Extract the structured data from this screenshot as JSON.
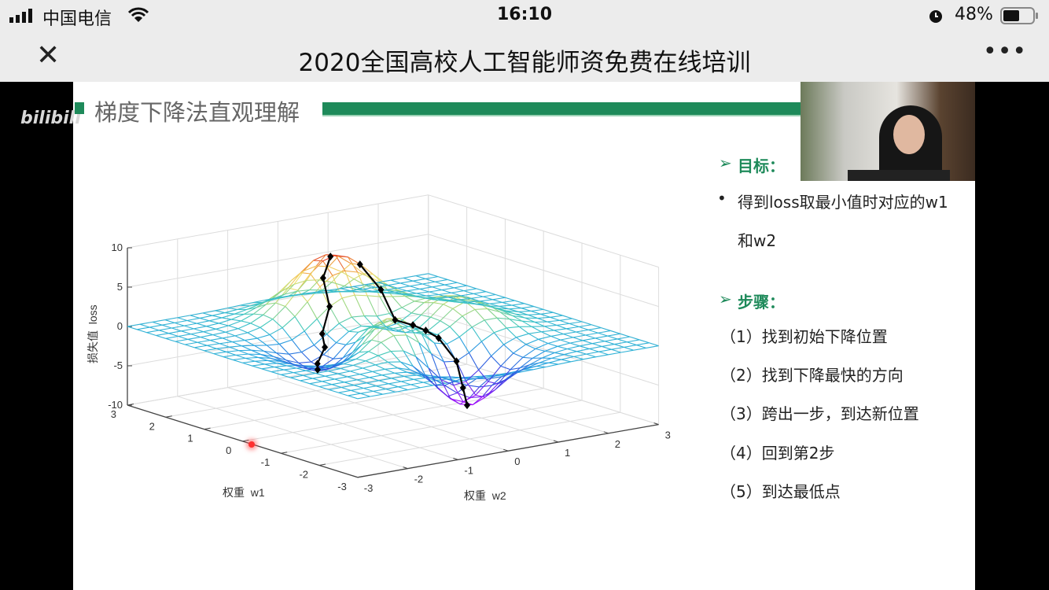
{
  "status_bar": {
    "carrier": "中国电信",
    "time": "16:10",
    "battery": "48%",
    "icons": [
      "signal-icon",
      "wifi-icon",
      "alarm-icon",
      "battery-icon"
    ]
  },
  "nav": {
    "title": "2020全国高校人工智能师资免费在线培训",
    "close_icon": "close-icon",
    "more_icon": "more-icon"
  },
  "video": {
    "watermark": "bilibili",
    "slide": {
      "title": "梯度下降法直观理解",
      "accent_color": "#1e8a5a",
      "goal_heading": "目标：",
      "goal_bullet_line1": "得到loss取最小值时对应的w1",
      "goal_bullet_line2": "和w2",
      "steps_heading": "步骤：",
      "steps": [
        "（1）找到初始下降位置",
        "（2）找到下降最快的方向",
        "（3）跨出一步，到达新位置",
        "（4）回到第2步",
        "（5）到达最低点"
      ]
    }
  },
  "chart_data": {
    "type": "surface",
    "xlabel": "权重  w1",
    "ylabel": "权重  w2",
    "zlabel": "损失值  loss",
    "xlim": [
      -3,
      3
    ],
    "ylim": [
      -3,
      3
    ],
    "zlim": [
      -10,
      10
    ],
    "x_ticks": [
      "-3",
      "-2",
      "-1",
      "0",
      "1",
      "2",
      "3"
    ],
    "y_ticks": [
      "-3",
      "-2",
      "-1",
      "0",
      "1",
      "2",
      "3"
    ],
    "z_ticks": [
      "-10",
      "-5",
      "0",
      "5",
      "10"
    ],
    "grid": true,
    "colormap": [
      "#b000ff",
      "#3050e0",
      "#2aa8e0",
      "#40c8c0",
      "#a0d880",
      "#f0e070",
      "#f0a040",
      "#e02020"
    ],
    "descent_paths": [
      [
        [
          1.45,
          0.45
        ],
        [
          1.1,
          0.6
        ],
        [
          0.6,
          0.5
        ],
        [
          0.2,
          0.55
        ],
        [
          -0.2,
          0.5
        ],
        [
          -0.6,
          0.45
        ],
        [
          -1.0,
          0.5
        ],
        [
          -1.3,
          0.4
        ],
        [
          -1.63,
          0.23
        ]
      ],
      [
        [
          1.5,
          -0.1
        ],
        [
          1.3,
          -0.4
        ],
        [
          1.0,
          -0.5
        ],
        [
          0.8,
          -0.8
        ],
        [
          0.6,
          -0.9
        ],
        [
          0.4,
          -1.2
        ],
        [
          0.2,
          -1.35
        ]
      ]
    ]
  }
}
